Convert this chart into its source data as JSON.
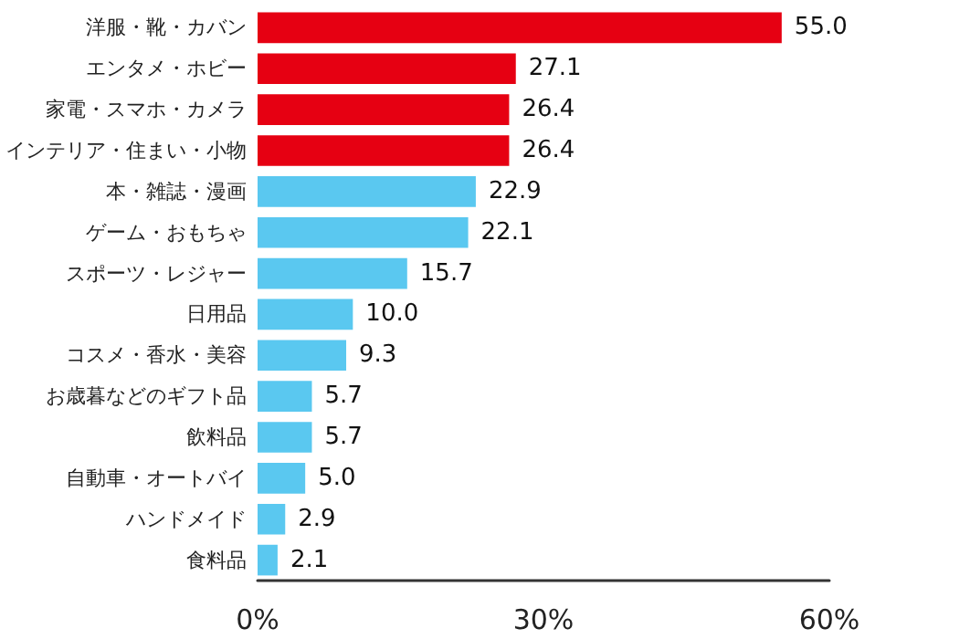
{
  "chart_data": {
    "type": "bar",
    "orientation": "horizontal",
    "value_labels": [
      "55.0",
      "27.1",
      "26.4",
      "26.4",
      "22.9",
      "22.1",
      "15.7",
      "10.0",
      "9.3",
      "5.7",
      "5.7",
      "5.0",
      "2.9",
      "2.1"
    ],
    "categories": [
      "洋服・靴・カバン",
      "エンタメ・ホビー",
      "家電・スマホ・カメラ",
      "インテリア・住まい・小物",
      "本・雑誌・漫画",
      "ゲーム・おもちゃ",
      "スポーツ・レジャー",
      "日用品",
      "コスメ・香水・美容",
      "お歳暮などのギフト品",
      "飲料品",
      "自動車・オートバイ",
      "ハンドメイド",
      "食料品"
    ],
    "values": [
      55.0,
      27.1,
      26.4,
      26.4,
      22.9,
      22.1,
      15.7,
      10.0,
      9.3,
      5.7,
      5.7,
      5.0,
      2.9,
      2.1
    ],
    "colors": [
      "#e60012",
      "#e60012",
      "#e60012",
      "#e60012",
      "#5ac8f0",
      "#5ac8f0",
      "#5ac8f0",
      "#5ac8f0",
      "#5ac8f0",
      "#5ac8f0",
      "#5ac8f0",
      "#5ac8f0",
      "#5ac8f0",
      "#5ac8f0"
    ],
    "xlim": [
      0,
      60
    ],
    "xticks": [
      {
        "value": 0,
        "label": "0%"
      },
      {
        "value": 30,
        "label": "30%"
      },
      {
        "value": 60,
        "label": "60%"
      }
    ],
    "grid": false
  }
}
